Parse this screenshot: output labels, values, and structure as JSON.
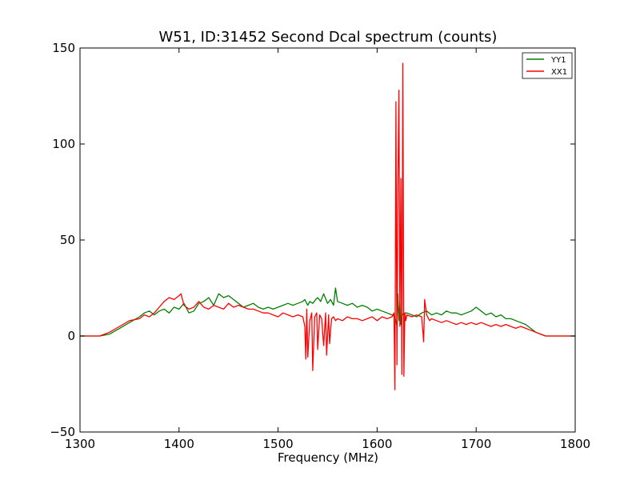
{
  "chart_data": {
    "type": "line",
    "title": "W51, ID:31452 Second Dcal spectrum (counts)",
    "xlabel": "Frequency (MHz)",
    "ylabel": "",
    "xlim": [
      1300,
      1800
    ],
    "ylim": [
      -50,
      150
    ],
    "xticks": [
      1300,
      1400,
      1500,
      1600,
      1700,
      1800
    ],
    "yticks": [
      -50,
      0,
      50,
      100,
      150
    ],
    "xtick_labels": [
      "1300",
      "1400",
      "1500",
      "1600",
      "1700",
      "1800"
    ],
    "ytick_labels": [
      "−50",
      "0",
      "50",
      "100",
      "150"
    ],
    "grid": false,
    "legend_position": "top-right",
    "series": [
      {
        "name": "YY1",
        "color": "#008000",
        "x": [
          1300,
          1310,
          1320,
          1330,
          1340,
          1350,
          1360,
          1365,
          1370,
          1375,
          1380,
          1385,
          1390,
          1395,
          1400,
          1405,
          1410,
          1415,
          1420,
          1425,
          1430,
          1435,
          1440,
          1445,
          1450,
          1455,
          1460,
          1465,
          1470,
          1475,
          1480,
          1485,
          1490,
          1495,
          1500,
          1505,
          1510,
          1515,
          1520,
          1525,
          1527,
          1530,
          1532,
          1535,
          1538,
          1540,
          1543,
          1546,
          1550,
          1553,
          1556,
          1558,
          1560,
          1565,
          1570,
          1575,
          1580,
          1585,
          1590,
          1595,
          1600,
          1605,
          1610,
          1615,
          1618,
          1620,
          1621,
          1622,
          1623,
          1624,
          1625,
          1626,
          1628,
          1630,
          1635,
          1640,
          1645,
          1650,
          1655,
          1660,
          1665,
          1670,
          1675,
          1680,
          1685,
          1690,
          1695,
          1700,
          1705,
          1710,
          1715,
          1720,
          1725,
          1730,
          1735,
          1740,
          1745,
          1750,
          1755,
          1760,
          1765,
          1770,
          1775,
          1780,
          1790,
          1800
        ],
        "y": [
          0,
          0,
          0,
          1,
          4,
          7,
          10,
          12,
          13,
          11,
          13,
          14,
          12,
          15,
          14,
          17,
          12,
          13,
          17,
          18,
          20,
          16,
          22,
          20,
          21,
          19,
          17,
          15,
          16,
          17,
          15,
          14,
          15,
          14,
          15,
          16,
          17,
          16,
          17,
          18,
          19,
          16,
          18,
          17,
          19,
          20,
          18,
          22,
          17,
          19,
          16,
          25,
          18,
          17,
          16,
          17,
          15,
          16,
          15,
          13,
          14,
          13,
          12,
          11,
          10,
          5,
          22,
          8,
          18,
          6,
          12,
          11,
          12,
          12,
          11,
          10,
          12,
          13,
          11,
          12,
          11,
          13,
          12,
          12,
          11,
          12,
          13,
          15,
          13,
          11,
          12,
          10,
          11,
          9,
          9,
          8,
          7,
          6,
          4,
          2,
          1,
          0,
          0,
          0,
          0,
          0
        ]
      },
      {
        "name": "XX1",
        "color": "#ff0000",
        "x": [
          1300,
          1310,
          1320,
          1330,
          1340,
          1350,
          1360,
          1365,
          1370,
          1375,
          1380,
          1385,
          1390,
          1395,
          1400,
          1402,
          1405,
          1410,
          1415,
          1420,
          1425,
          1430,
          1435,
          1440,
          1445,
          1450,
          1455,
          1460,
          1465,
          1470,
          1475,
          1480,
          1485,
          1490,
          1495,
          1500,
          1505,
          1510,
          1515,
          1520,
          1525,
          1527,
          1528,
          1529,
          1530,
          1532,
          1534,
          1535,
          1537,
          1539,
          1540,
          1542,
          1544,
          1546,
          1548,
          1549,
          1551,
          1552,
          1554,
          1556,
          1558,
          1560,
          1565,
          1570,
          1575,
          1580,
          1585,
          1590,
          1595,
          1600,
          1605,
          1610,
          1615,
          1617,
          1618,
          1619,
          1620,
          1621,
          1622,
          1623,
          1624,
          1625,
          1626,
          1627,
          1628,
          1629,
          1630,
          1635,
          1640,
          1645,
          1647,
          1648,
          1650,
          1652,
          1653,
          1655,
          1660,
          1665,
          1670,
          1675,
          1680,
          1685,
          1690,
          1695,
          1700,
          1705,
          1710,
          1715,
          1720,
          1725,
          1730,
          1735,
          1740,
          1745,
          1750,
          1755,
          1760,
          1765,
          1770,
          1775,
          1780,
          1790,
          1800
        ],
        "y": [
          0,
          0,
          0,
          2,
          5,
          8,
          9,
          11,
          10,
          12,
          15,
          18,
          20,
          19,
          21,
          22,
          16,
          14,
          15,
          18,
          15,
          14,
          16,
          15,
          14,
          17,
          15,
          16,
          15,
          14,
          14,
          13,
          12,
          12,
          11,
          10,
          12,
          11,
          10,
          11,
          10,
          5,
          -12,
          14,
          -11,
          8,
          12,
          -18,
          10,
          12,
          -7,
          11,
          9,
          -5,
          12,
          -10,
          11,
          -4,
          9,
          10,
          8,
          9,
          8,
          10,
          9,
          9,
          8,
          9,
          10,
          8,
          10,
          9,
          10,
          12,
          -28,
          122,
          -15,
          80,
          128,
          5,
          82,
          -20,
          142,
          -21,
          12,
          8,
          11,
          10,
          11,
          10,
          -3,
          19,
          11,
          9,
          8,
          9,
          8,
          7,
          8,
          7,
          6,
          7,
          6,
          7,
          6,
          7,
          6,
          5,
          6,
          5,
          6,
          5,
          4,
          5,
          4,
          3,
          2,
          1,
          0,
          0,
          0,
          0,
          0
        ]
      }
    ]
  }
}
